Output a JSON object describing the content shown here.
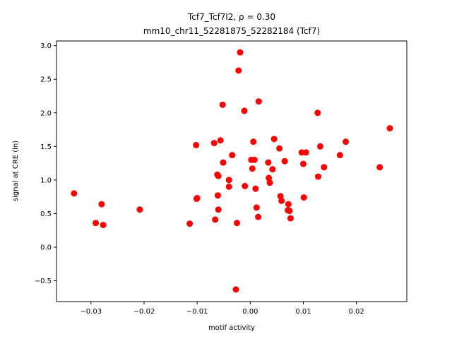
{
  "chart_data": {
    "type": "scatter",
    "title_line1": "Tcf7_Tcf7l2, ρ = 0.30",
    "title_line2": "mm10_chr11_52281875_52282184 (Tcf7)",
    "xlabel": "motif activity",
    "ylabel": "signal at CRE (ln)",
    "xlim": [
      -0.0365,
      0.0295
    ],
    "ylim": [
      -0.81,
      3.07
    ],
    "xticks": [
      -0.03,
      -0.02,
      -0.01,
      0.0,
      0.01,
      0.02
    ],
    "xtick_labels": [
      "−0.03",
      "−0.02",
      "−0.01",
      "0.00",
      "0.01",
      "0.02"
    ],
    "yticks": [
      -0.5,
      0.0,
      0.5,
      1.0,
      1.5,
      2.0,
      2.5,
      3.0
    ],
    "ytick_labels": [
      "−0.5",
      "0.0",
      "0.5",
      "1.0",
      "1.5",
      "2.0",
      "2.5",
      "3.0"
    ],
    "grid": false,
    "point_color": "#ff0000",
    "points": [
      {
        "x": -0.0332,
        "y": 0.8
      },
      {
        "x": -0.0291,
        "y": 0.36
      },
      {
        "x": -0.028,
        "y": 0.64
      },
      {
        "x": -0.0277,
        "y": 0.33
      },
      {
        "x": -0.0208,
        "y": 0.56
      },
      {
        "x": -0.0114,
        "y": 0.35
      },
      {
        "x": -0.0102,
        "y": 1.52
      },
      {
        "x": -0.01,
        "y": 0.73
      },
      {
        "x": -0.0101,
        "y": 0.72
      },
      {
        "x": -0.0068,
        "y": 1.55
      },
      {
        "x": -0.0066,
        "y": 0.41
      },
      {
        "x": -0.0062,
        "y": 1.08
      },
      {
        "x": -0.006,
        "y": 1.06
      },
      {
        "x": -0.0061,
        "y": 0.77
      },
      {
        "x": -0.006,
        "y": 0.56
      },
      {
        "x": -0.0056,
        "y": 1.59
      },
      {
        "x": -0.0052,
        "y": 2.12
      },
      {
        "x": -0.0051,
        "y": 1.26
      },
      {
        "x": -0.004,
        "y": 1.0
      },
      {
        "x": -0.004,
        "y": 0.9
      },
      {
        "x": -0.0034,
        "y": 1.37
      },
      {
        "x": -0.0027,
        "y": -0.63
      },
      {
        "x": -0.0025,
        "y": 0.36
      },
      {
        "x": -0.0022,
        "y": 2.63
      },
      {
        "x": -0.0019,
        "y": 2.9
      },
      {
        "x": -0.0011,
        "y": 2.03
      },
      {
        "x": -0.001,
        "y": 0.91
      },
      {
        "x": 0.0002,
        "y": 1.3
      },
      {
        "x": 0.0004,
        "y": 1.17
      },
      {
        "x": 0.0006,
        "y": 1.57
      },
      {
        "x": 0.0008,
        "y": 1.3
      },
      {
        "x": 0.001,
        "y": 0.87
      },
      {
        "x": 0.0012,
        "y": 0.59
      },
      {
        "x": 0.0015,
        "y": 0.45
      },
      {
        "x": 0.0016,
        "y": 2.17
      },
      {
        "x": 0.0034,
        "y": 1.26
      },
      {
        "x": 0.0035,
        "y": 1.03
      },
      {
        "x": 0.0037,
        "y": 0.96
      },
      {
        "x": 0.0042,
        "y": 1.16
      },
      {
        "x": 0.0045,
        "y": 1.61
      },
      {
        "x": 0.0055,
        "y": 1.47
      },
      {
        "x": 0.0057,
        "y": 0.76
      },
      {
        "x": 0.0059,
        "y": 0.69
      },
      {
        "x": 0.0065,
        "y": 1.28
      },
      {
        "x": 0.0071,
        "y": 0.55
      },
      {
        "x": 0.0072,
        "y": 0.64
      },
      {
        "x": 0.0074,
        "y": 0.54
      },
      {
        "x": 0.0076,
        "y": 0.43
      },
      {
        "x": 0.0097,
        "y": 1.41
      },
      {
        "x": 0.01,
        "y": 1.24
      },
      {
        "x": 0.0101,
        "y": 0.74
      },
      {
        "x": 0.0105,
        "y": 1.41
      },
      {
        "x": 0.0127,
        "y": 2.0
      },
      {
        "x": 0.0128,
        "y": 1.05
      },
      {
        "x": 0.0132,
        "y": 1.5
      },
      {
        "x": 0.0139,
        "y": 1.19
      },
      {
        "x": 0.0169,
        "y": 1.37
      },
      {
        "x": 0.018,
        "y": 1.57
      },
      {
        "x": 0.0244,
        "y": 1.19
      },
      {
        "x": 0.0263,
        "y": 1.77
      }
    ]
  }
}
